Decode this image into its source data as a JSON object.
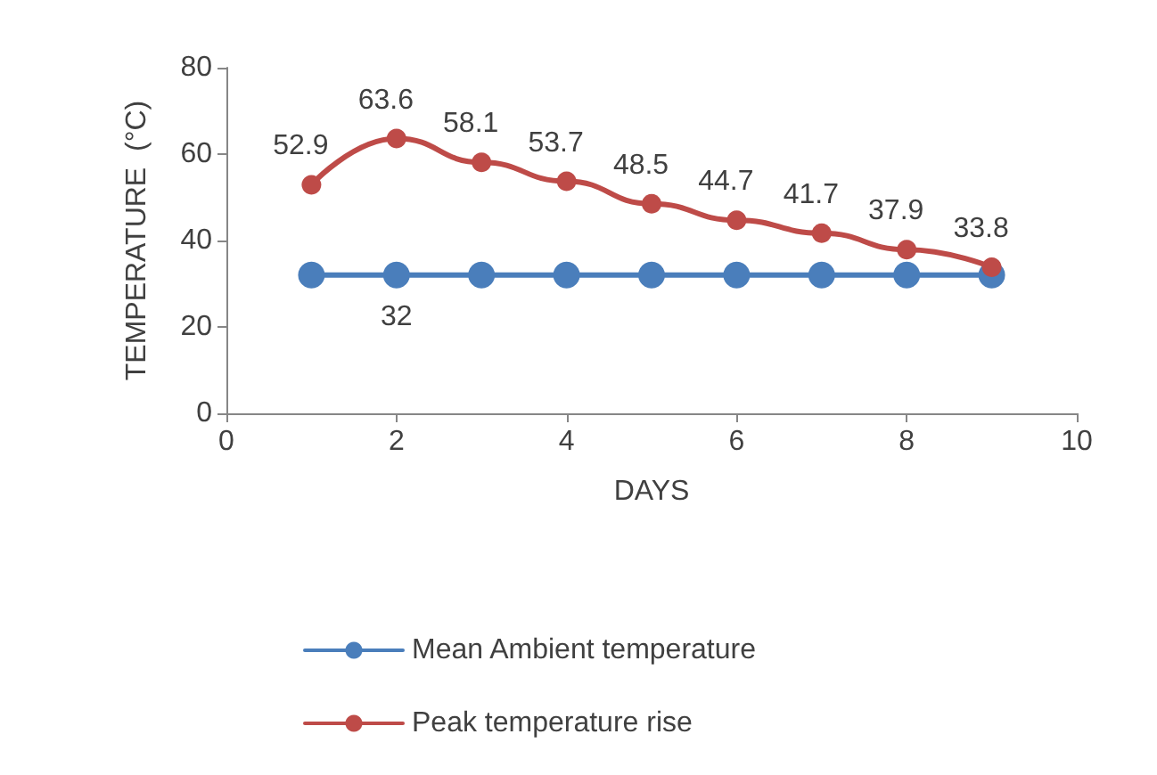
{
  "chart_data": {
    "type": "line",
    "xlabel": "DAYS",
    "ylabel": "TEMPERATURE  (°C)",
    "x": [
      1,
      2,
      3,
      4,
      5,
      6,
      7,
      8,
      9
    ],
    "series": [
      {
        "name": "Mean Ambient temperature",
        "color": "#4a7ebb",
        "values": [
          32,
          32,
          32,
          32,
          32,
          32,
          32,
          32,
          32
        ],
        "value_labels": [
          null,
          "32",
          null,
          null,
          null,
          null,
          null,
          null,
          null
        ]
      },
      {
        "name": "Peak temperature rise",
        "color": "#be4b48",
        "values": [
          52.9,
          63.6,
          58.1,
          53.7,
          48.5,
          44.7,
          41.7,
          37.9,
          33.8
        ],
        "value_labels": [
          "52.9",
          "63.6",
          "58.1",
          "53.7",
          "48.5",
          "44.7",
          "41.7",
          "37.9",
          "33.8"
        ]
      }
    ],
    "xlim": [
      0,
      10
    ],
    "xticks": [
      0,
      2,
      4,
      6,
      8,
      10
    ],
    "ylim": [
      0,
      80
    ],
    "yticks": [
      0,
      20,
      40,
      60,
      80
    ],
    "grid": false,
    "legend": "bottom",
    "marker": "circle",
    "line_style": "solid"
  }
}
